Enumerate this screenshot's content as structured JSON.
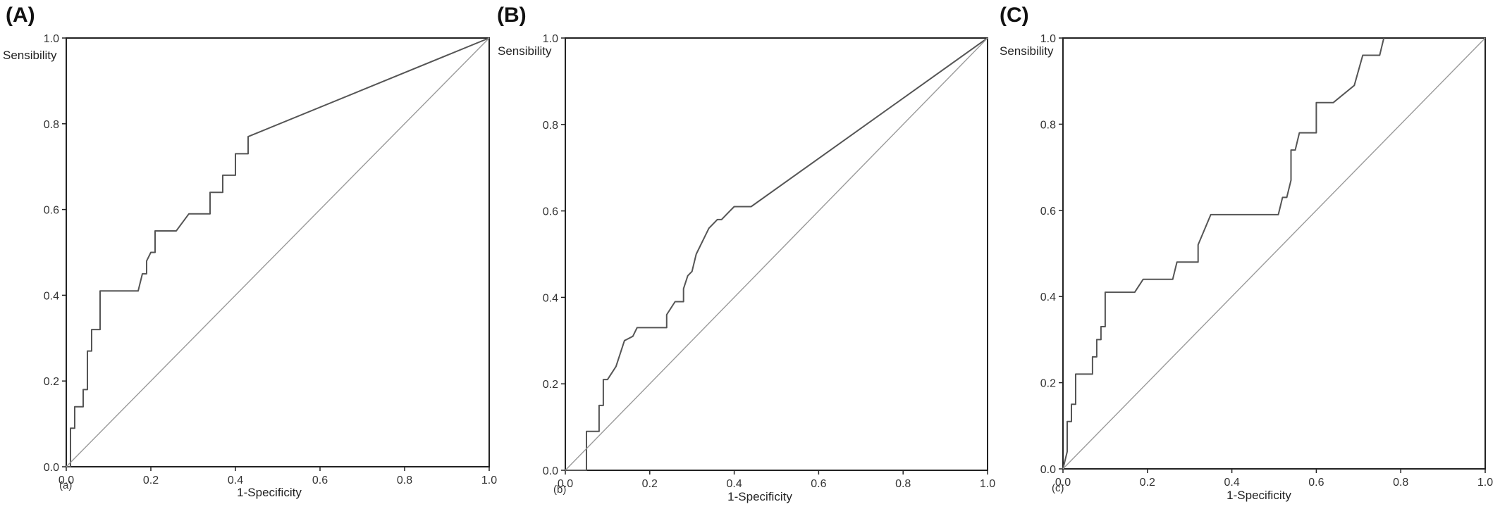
{
  "chart_data": [
    {
      "type": "line",
      "panel_label": "(A)",
      "sub_label": "(a)",
      "xlabel": "1-Specificity",
      "ylabel": "Sensibility",
      "xlim": [
        0,
        1
      ],
      "ylim": [
        0,
        1
      ],
      "x_ticks": [
        "0.0",
        "0.2",
        "0.4",
        "0.6",
        "0.8",
        "1.0"
      ],
      "y_ticks": [
        "0.0",
        "0.2",
        "0.4",
        "0.6",
        "0.8",
        "1.0"
      ],
      "grid": false,
      "series": [
        {
          "role": "curve",
          "x": [
            0,
            0.01,
            0.01,
            0.02,
            0.02,
            0.04,
            0.04,
            0.05,
            0.05,
            0.06,
            0.06,
            0.07,
            0.07,
            0.08,
            0.08,
            0.17,
            0.18,
            0.19,
            0.19,
            0.2,
            0.21,
            0.21,
            0.26,
            0.29,
            0.34,
            0.34,
            0.37,
            0.37,
            0.4,
            0.4,
            0.43,
            0.43,
            1.0
          ],
          "y": [
            0,
            0,
            0.09,
            0.09,
            0.14,
            0.14,
            0.18,
            0.18,
            0.27,
            0.27,
            0.32,
            0.32,
            0.32,
            0.32,
            0.41,
            0.41,
            0.45,
            0.45,
            0.48,
            0.5,
            0.5,
            0.55,
            0.55,
            0.59,
            0.59,
            0.64,
            0.64,
            0.68,
            0.68,
            0.73,
            0.73,
            0.77,
            1.0
          ]
        },
        {
          "role": "reference",
          "x": [
            0,
            1
          ],
          "y": [
            0,
            1
          ]
        }
      ]
    },
    {
      "type": "line",
      "panel_label": "(B)",
      "sub_label": "(b)",
      "xlabel": "1-Specificity",
      "ylabel": "Sensibility",
      "xlim": [
        0,
        1
      ],
      "ylim": [
        0,
        1
      ],
      "x_ticks": [
        "0.0",
        "0.2",
        "0.4",
        "0.6",
        "0.8",
        "1.0"
      ],
      "y_ticks": [
        "0.0",
        "0.2",
        "0.4",
        "0.6",
        "0.8",
        "1.0"
      ],
      "grid": false,
      "series": [
        {
          "role": "curve",
          "x": [
            0,
            0.05,
            0.05,
            0.08,
            0.08,
            0.09,
            0.09,
            0.1,
            0.1,
            0.12,
            0.14,
            0.14,
            0.16,
            0.17,
            0.17,
            0.24,
            0.24,
            0.26,
            0.28,
            0.28,
            0.29,
            0.3,
            0.31,
            0.33,
            0.34,
            0.36,
            0.37,
            0.39,
            0.4,
            0.44,
            1.0
          ],
          "y": [
            0,
            0,
            0.09,
            0.09,
            0.15,
            0.15,
            0.21,
            0.21,
            0.21,
            0.24,
            0.3,
            0.3,
            0.31,
            0.33,
            0.33,
            0.33,
            0.36,
            0.39,
            0.39,
            0.42,
            0.45,
            0.46,
            0.5,
            0.54,
            0.56,
            0.58,
            0.58,
            0.6,
            0.61,
            0.61,
            1.0
          ]
        },
        {
          "role": "reference",
          "x": [
            0,
            1
          ],
          "y": [
            0,
            1
          ]
        }
      ]
    },
    {
      "type": "line",
      "panel_label": "(C)",
      "sub_label": "(c)",
      "xlabel": "1-Specificity",
      "ylabel": "Sensibility",
      "xlim": [
        0,
        1
      ],
      "ylim": [
        0,
        1
      ],
      "x_ticks": [
        "0.0",
        "0.2",
        "0.4",
        "0.6",
        "0.8",
        "1.0"
      ],
      "y_ticks": [
        "0.0",
        "0.2",
        "0.4",
        "0.6",
        "0.8",
        "1.0"
      ],
      "grid": false,
      "series": [
        {
          "role": "curve",
          "x": [
            0,
            0.01,
            0.01,
            0.02,
            0.02,
            0.03,
            0.03,
            0.04,
            0.04,
            0.07,
            0.07,
            0.08,
            0.08,
            0.09,
            0.09,
            0.1,
            0.1,
            0.17,
            0.19,
            0.21,
            0.26,
            0.27,
            0.27,
            0.32,
            0.32,
            0.35,
            0.35,
            0.51,
            0.52,
            0.53,
            0.54,
            0.54,
            0.55,
            0.56,
            0.57,
            0.6,
            0.6,
            0.64,
            0.69,
            0.69,
            0.71,
            0.71,
            0.75,
            0.76,
            0.76
          ],
          "y": [
            0,
            0.04,
            0.11,
            0.11,
            0.15,
            0.15,
            0.22,
            0.22,
            0.22,
            0.22,
            0.26,
            0.26,
            0.3,
            0.3,
            0.33,
            0.33,
            0.41,
            0.41,
            0.44,
            0.44,
            0.44,
            0.48,
            0.48,
            0.48,
            0.52,
            0.59,
            0.59,
            0.59,
            0.63,
            0.63,
            0.67,
            0.74,
            0.74,
            0.78,
            0.78,
            0.78,
            0.85,
            0.85,
            0.89,
            0.89,
            0.96,
            0.96,
            0.96,
            1.0,
            1.0
          ]
        },
        {
          "role": "reference",
          "x": [
            0,
            1
          ],
          "y": [
            0,
            1
          ]
        }
      ]
    }
  ]
}
